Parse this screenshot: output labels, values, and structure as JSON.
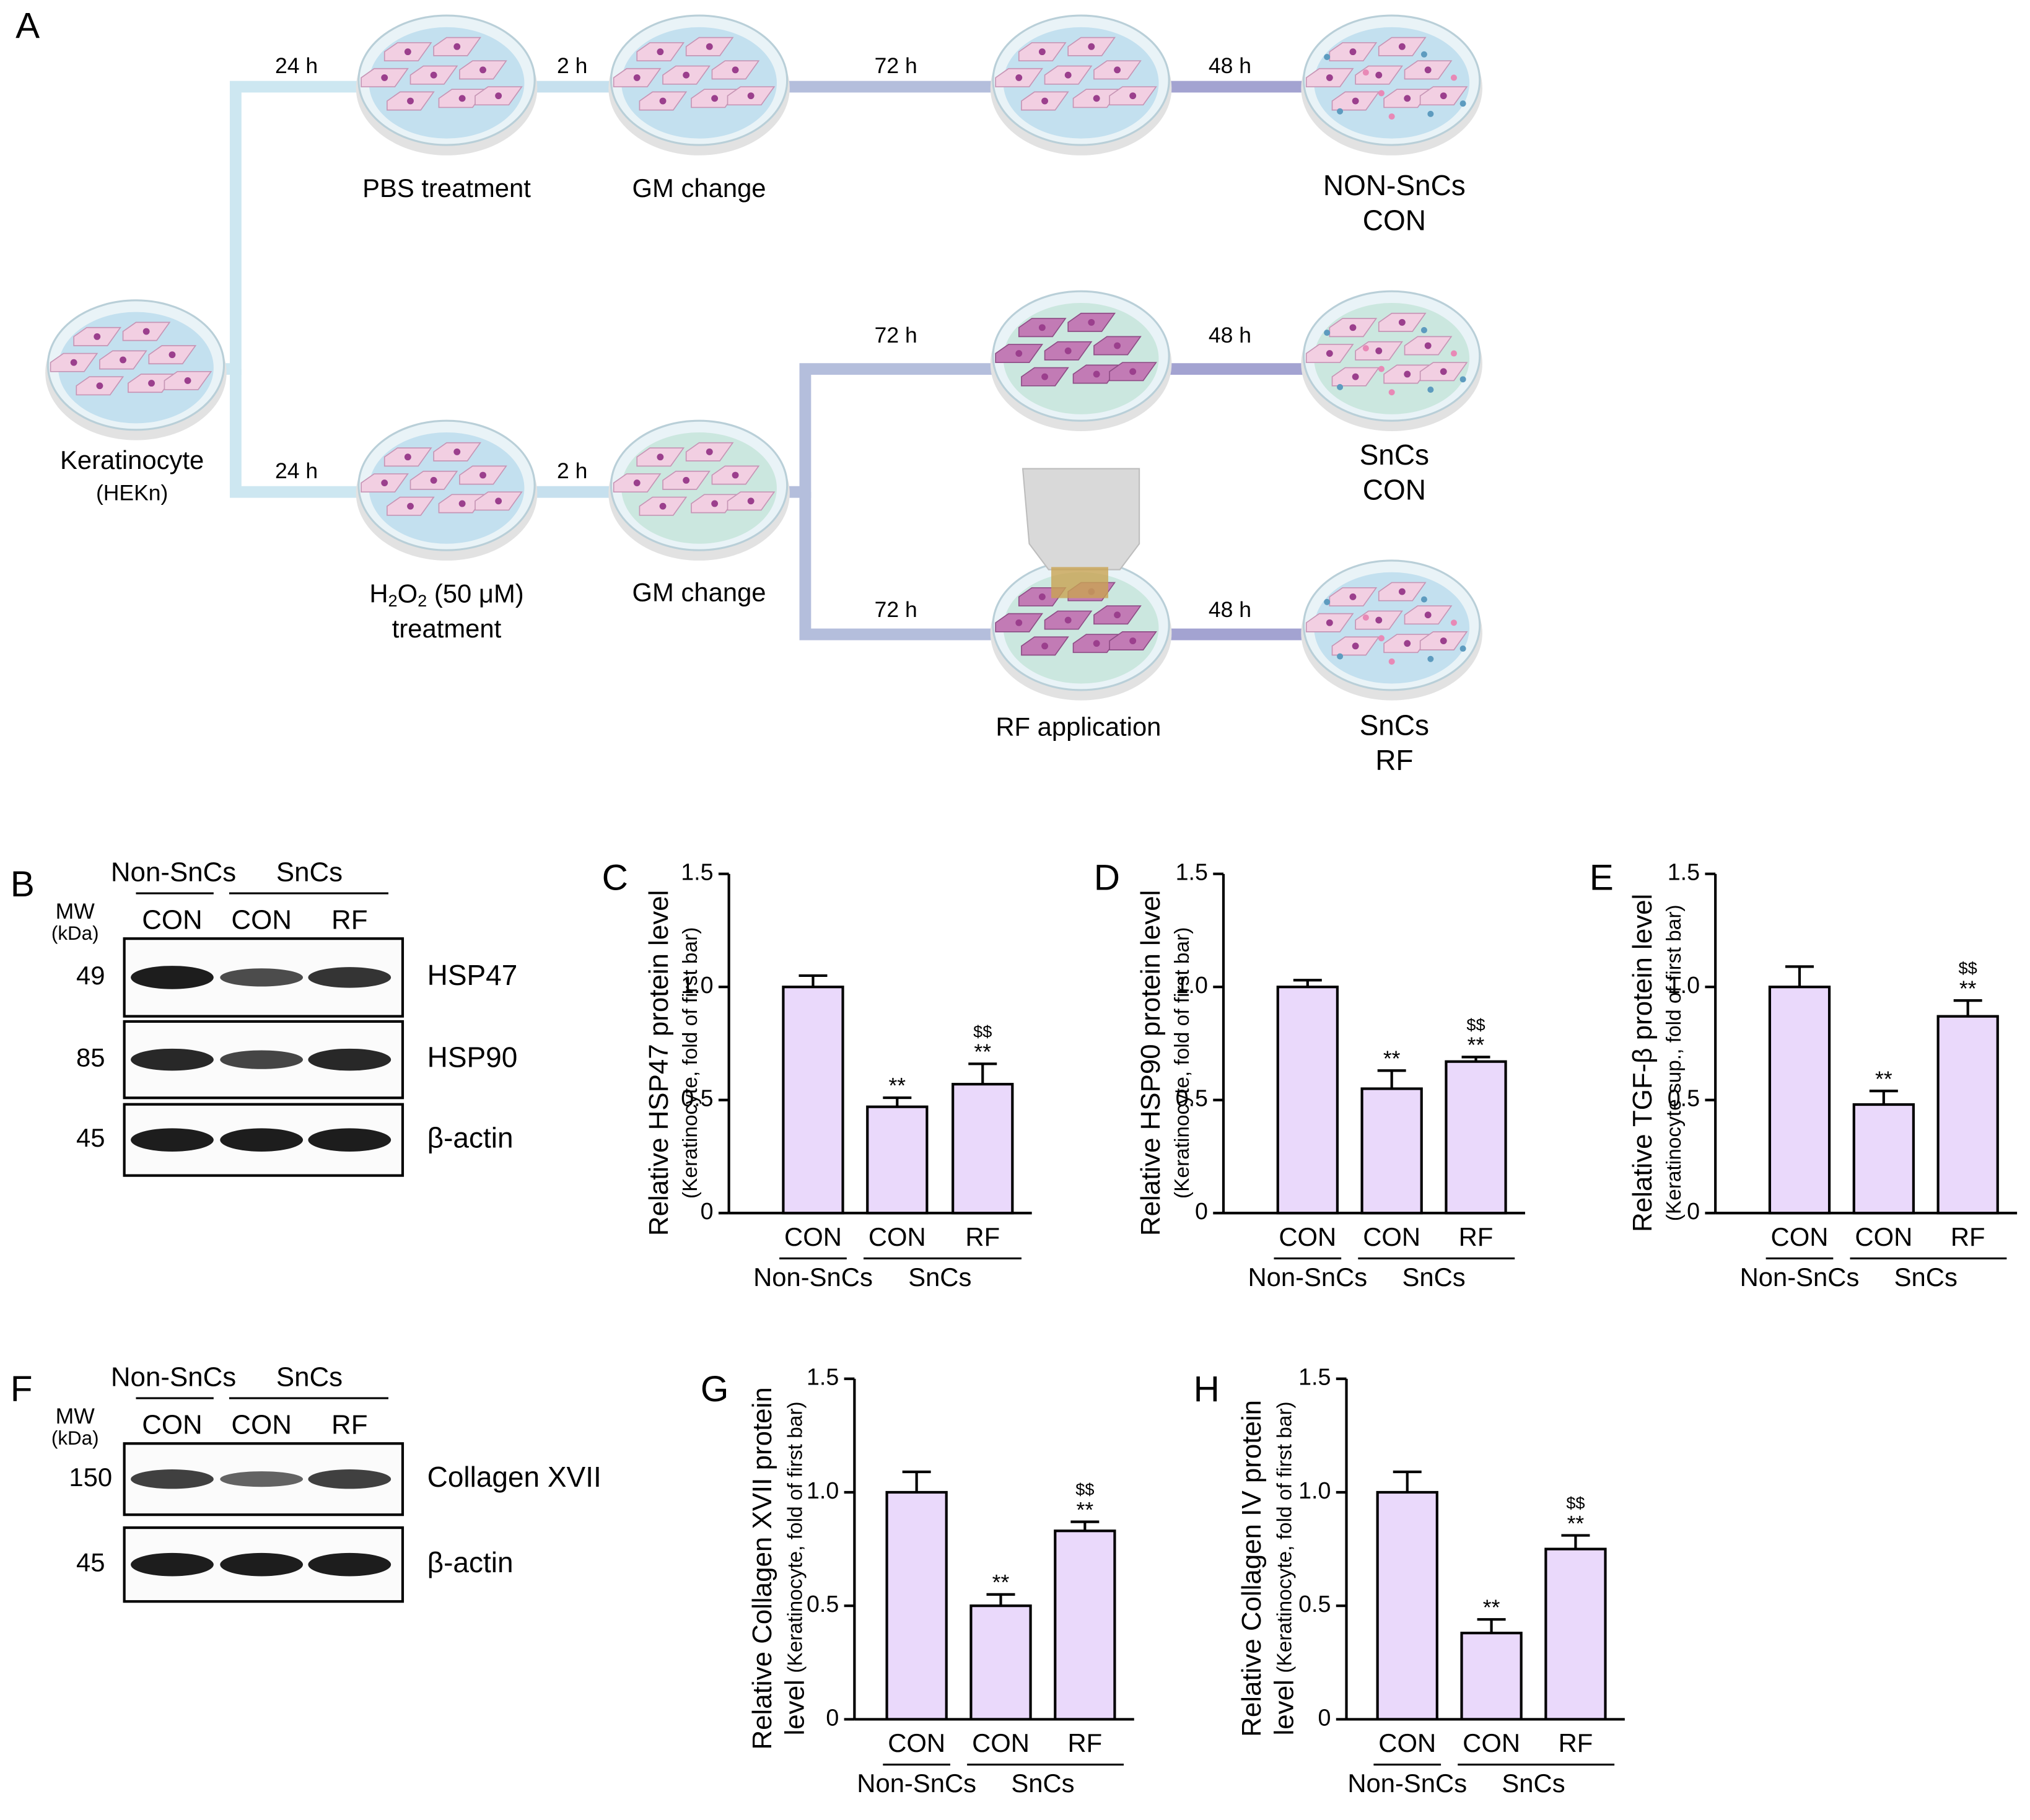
{
  "panel_A": "A",
  "diagram": {
    "nodes": [
      {
        "lines": [
          "Keratinocyte",
          "(HEKn)"
        ]
      },
      {
        "lines": [
          "PBS treatment"
        ]
      },
      {
        "lines": [
          "GM change"
        ]
      },
      {
        "lines": [
          "NON-SnCs",
          "CON"
        ]
      },
      {
        "lines": [
          [
            "H",
            "2",
            "O",
            "2",
            " (50 μM)"
          ],
          "treatment"
        ]
      },
      {
        "lines": [
          "GM change"
        ]
      },
      {
        "lines": [
          "SnCs",
          "CON"
        ]
      },
      {
        "lines": [
          "RF application"
        ]
      },
      {
        "lines": [
          "SnCs",
          "RF"
        ]
      }
    ],
    "times": [
      "24 h",
      "2 h",
      "72 h",
      "48 h",
      "24 h",
      "2 h",
      "72 h",
      "48 h",
      "72 h",
      "48 h"
    ]
  },
  "blots": [
    {
      "panel": "B",
      "groups": [
        "Non-SnCs",
        "SnCs"
      ],
      "mw": "MW",
      "mw_unit": "(kDa)",
      "lanes": [
        "CON",
        "CON",
        "RF"
      ],
      "rows": [
        {
          "mw": 49,
          "label": "HSP47"
        },
        {
          "mw": 85,
          "label": "HSP90"
        },
        {
          "mw": 45,
          "label": "β-actin"
        }
      ]
    },
    {
      "panel": "F",
      "groups": [
        "Non-SnCs",
        "SnCs"
      ],
      "mw": "MW",
      "mw_unit": "(kDa)",
      "lanes": [
        "CON",
        "CON",
        "RF"
      ],
      "rows": [
        {
          "mw": 150,
          "label": "Collagen XVII"
        },
        {
          "mw": 45,
          "label": "β-actin"
        }
      ]
    }
  ],
  "chart_data": [
    {
      "type": "bar",
      "panel": "C",
      "ylabel": [
        "Relative HSP47 protein level"
      ],
      "ylabel_note": "(Keratinocyte, fold of  first bar)",
      "categories": [
        "CON",
        "CON",
        "RF"
      ],
      "groups": [
        "Non-SnCs",
        "SnCs"
      ],
      "values": [
        1.0,
        0.47,
        0.57
      ],
      "errors": [
        0.05,
        0.04,
        0.09
      ],
      "stars": [
        null,
        "**",
        "**"
      ],
      "dollars": [
        null,
        null,
        "$$"
      ],
      "color": "#ead9fb",
      "ylim": [
        0,
        1.5
      ],
      "yticks": [
        0,
        0.5,
        {
          "value": 1,
          "label": "1.0"
        },
        1.5
      ]
    },
    {
      "type": "bar",
      "panel": "D",
      "ylabel": [
        "Relative HSP90 protein level"
      ],
      "ylabel_note": "(Keratinocyte, fold of first bar)",
      "categories": [
        "CON",
        "CON",
        "RF"
      ],
      "groups": [
        "Non-SnCs",
        "SnCs"
      ],
      "values": [
        1.0,
        0.55,
        0.67
      ],
      "errors": [
        0.03,
        0.08,
        0.02
      ],
      "stars": [
        null,
        "**",
        "**"
      ],
      "dollars": [
        null,
        null,
        "$$"
      ],
      "color": "#ead9fb",
      "ylim": [
        0,
        1.5
      ],
      "yticks": [
        0,
        0.5,
        {
          "value": 1,
          "label": "1.0"
        },
        1.5
      ]
    },
    {
      "type": "bar",
      "panel": "E",
      "ylabel": [
        "Relative TGF-β protein level"
      ],
      "ylabel_note": "(Keratinocyte sup., fold of first bar)",
      "categories": [
        "CON",
        "CON",
        "RF"
      ],
      "groups": [
        "Non-SnCs",
        "SnCs"
      ],
      "values": [
        1.0,
        0.48,
        0.87
      ],
      "errors": [
        0.09,
        0.06,
        0.07
      ],
      "stars": [
        null,
        "**",
        "**"
      ],
      "dollars": [
        null,
        null,
        "$$"
      ],
      "color": "#ead9fb",
      "ylim": [
        0,
        1.5
      ],
      "yticks": [
        0,
        0.5,
        {
          "value": 1,
          "label": "1.0"
        },
        1.5
      ]
    },
    {
      "type": "bar",
      "panel": "G",
      "ylabel": [
        "Relative Collagen XVII protein",
        "level"
      ],
      "ylabel_note": "(Keratinocyte, fold of first bar)",
      "categories": [
        "CON",
        "CON",
        "RF"
      ],
      "groups": [
        "Non-SnCs",
        "SnCs"
      ],
      "values": [
        1.0,
        0.5,
        0.83
      ],
      "errors": [
        0.09,
        0.05,
        0.04
      ],
      "stars": [
        null,
        "**",
        "**"
      ],
      "dollars": [
        null,
        null,
        "$$"
      ],
      "color": "#ead9fb",
      "ylim": [
        0,
        1.5
      ],
      "yticks": [
        0,
        0.5,
        {
          "value": 1,
          "label": "1.0"
        },
        1.5
      ]
    },
    {
      "type": "bar",
      "panel": "H",
      "ylabel": [
        "Relative Collagen IV protein",
        "level"
      ],
      "ylabel_note": "(Keratinocyte, fold of first bar)",
      "categories": [
        "CON",
        "CON",
        "RF"
      ],
      "groups": [
        "Non-SnCs",
        "SnCs"
      ],
      "values": [
        1.0,
        0.38,
        0.75
      ],
      "errors": [
        0.09,
        0.06,
        0.06
      ],
      "stars": [
        null,
        "**",
        "**"
      ],
      "dollars": [
        null,
        null,
        "$$"
      ],
      "color": "#ead9fb",
      "ylim": [
        0,
        1.5
      ],
      "yticks": [
        0,
        0.5,
        {
          "value": 1,
          "label": "1.0"
        },
        1.5
      ]
    }
  ]
}
